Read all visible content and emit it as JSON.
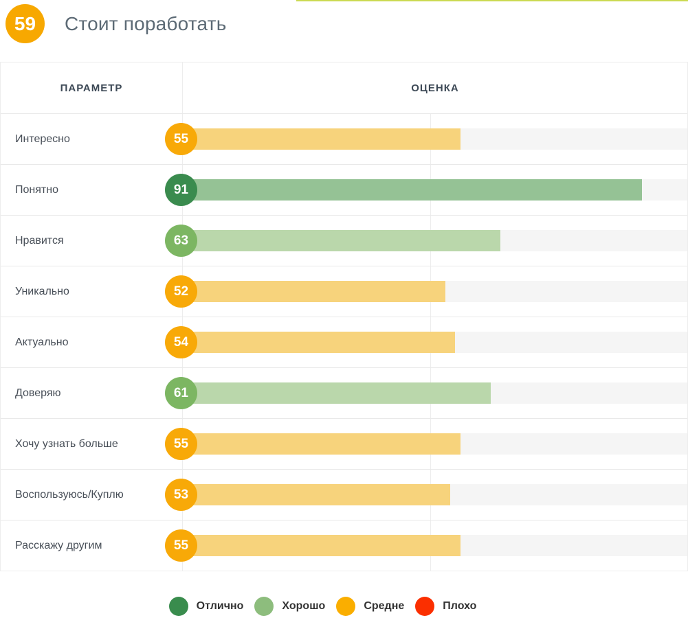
{
  "accent_line_color": "#CBDA52",
  "header": {
    "overall_score": "59",
    "overall_score_color": "#F7A801",
    "title": "Стоит поработать"
  },
  "table": {
    "columns": [
      "ПАРАМЕТР",
      "ОЦЕНКА"
    ],
    "max_value": 100,
    "rows": [
      {
        "label": "Интересно",
        "value": 55,
        "level": "average"
      },
      {
        "label": "Понятно",
        "value": 91,
        "level": "excellent"
      },
      {
        "label": "Нравится",
        "value": 63,
        "level": "good"
      },
      {
        "label": "Уникально",
        "value": 52,
        "level": "average"
      },
      {
        "label": "Актуально",
        "value": 54,
        "level": "average"
      },
      {
        "label": "Доверяю",
        "value": 61,
        "level": "good"
      },
      {
        "label": "Хочу узнать больше",
        "value": 55,
        "level": "average"
      },
      {
        "label": "Воспользуюсь/Куплю",
        "value": 53,
        "level": "average"
      },
      {
        "label": "Расскажу другим",
        "value": 55,
        "level": "average"
      }
    ]
  },
  "levels": {
    "excellent": {
      "badge": "#3A8B4E",
      "bar": "#95C295"
    },
    "good": {
      "badge": "#7CB662",
      "bar": "#BAD7AB"
    },
    "average": {
      "badge": "#F8A908",
      "bar": "#F7D37C"
    },
    "bad": {
      "badge": "#FB2F00",
      "bar": "#FBC1B3"
    }
  },
  "legend": {
    "items": [
      {
        "label": "Отлично",
        "color": "#398C4D"
      },
      {
        "label": "Хорошо",
        "color": "#8DBD7D"
      },
      {
        "label": "Средне",
        "color": "#FAAE00"
      },
      {
        "label": "Плохо",
        "color": "#FB2F00"
      }
    ]
  },
  "chart_data": {
    "type": "bar",
    "orientation": "horizontal",
    "title": "Стоит поработать",
    "overall_score": 59,
    "categories": [
      "Интересно",
      "Понятно",
      "Нравится",
      "Уникально",
      "Актуально",
      "Доверяю",
      "Хочу узнать больше",
      "Воспользуюсь/Куплю",
      "Расскажу другим"
    ],
    "values": [
      55,
      91,
      63,
      52,
      54,
      61,
      55,
      53,
      55
    ],
    "levels": [
      "Средне",
      "Отлично",
      "Хорошо",
      "Средне",
      "Средне",
      "Хорошо",
      "Средне",
      "Средне",
      "Средне"
    ],
    "xlim": [
      0,
      100
    ],
    "grid": false,
    "legend": [
      "Отлично",
      "Хорошо",
      "Средне",
      "Плохо"
    ],
    "legend_position": "bottom"
  }
}
